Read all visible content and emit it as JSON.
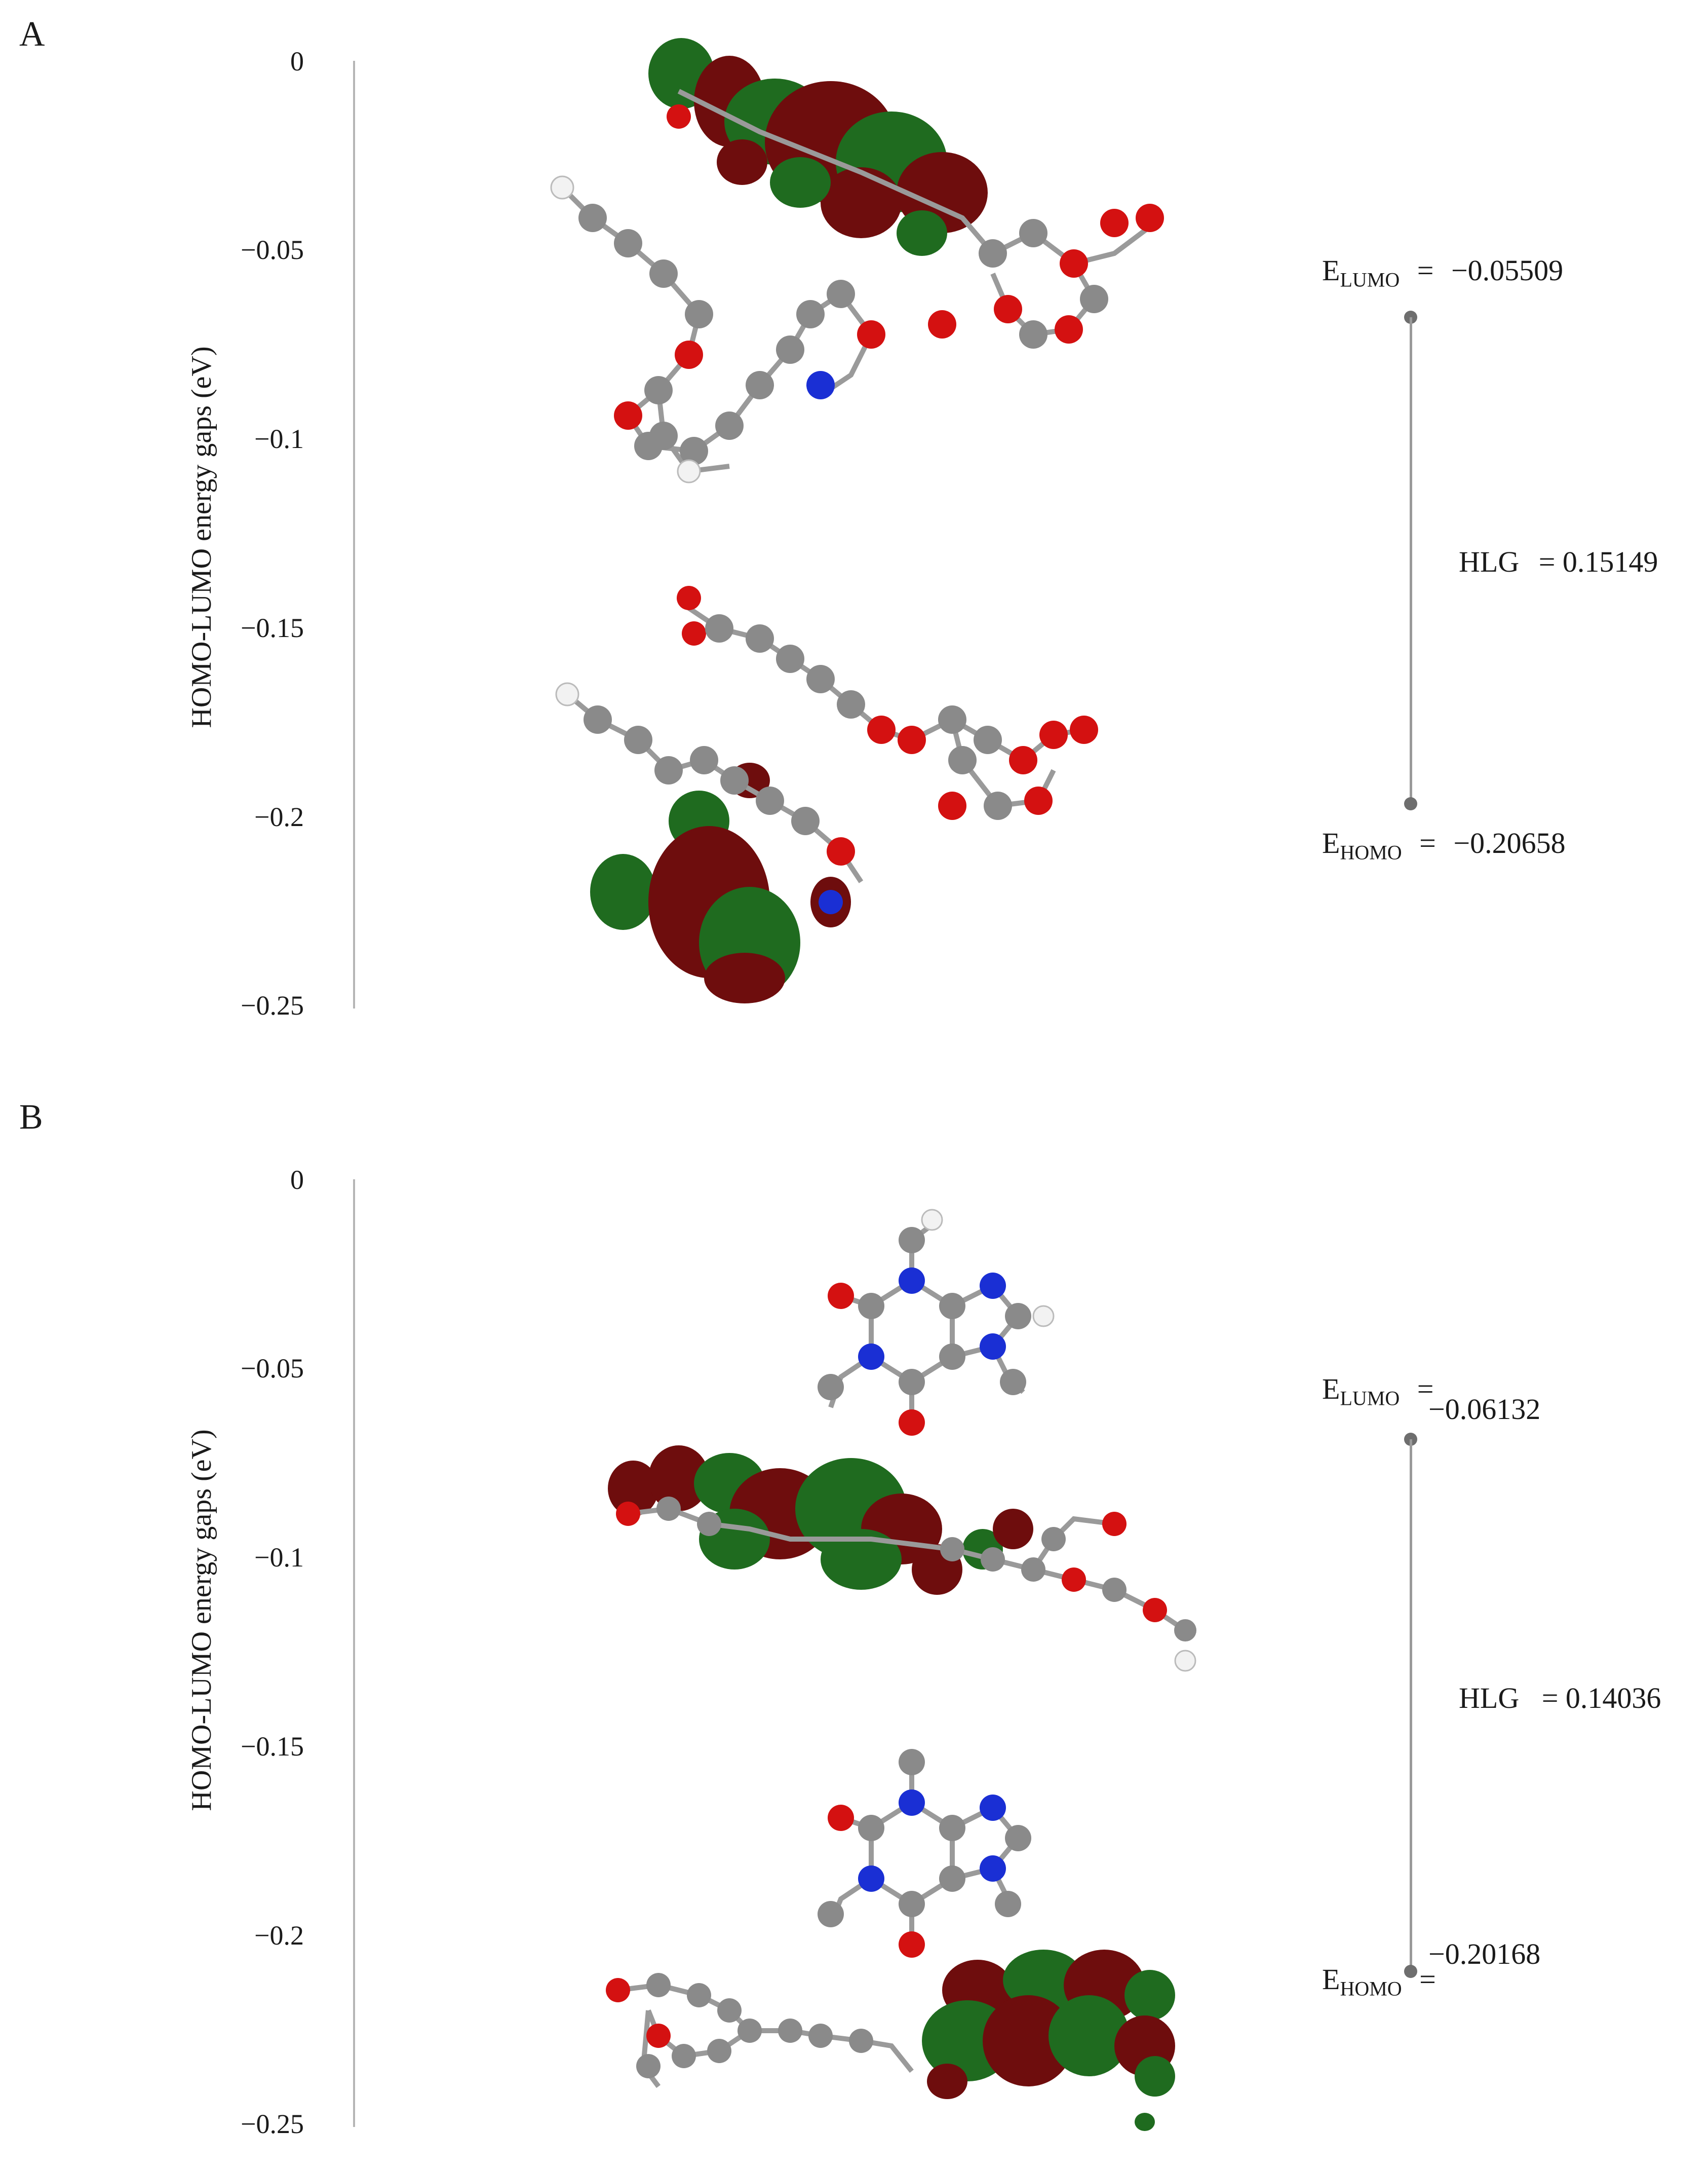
{
  "panels": [
    {
      "letter": "A",
      "y_axis_label": "HOMO-LUMO energy gaps (eV)",
      "y_ticks": [
        "0",
        "−0.05",
        "−0.1",
        "−0.15",
        "−0.2",
        "−0.25"
      ],
      "lumo": {
        "symbol": "E",
        "subscript": "LUMO",
        "eq": "=",
        "value": "−0.05509",
        "energy": -0.05509
      },
      "homo": {
        "symbol": "E",
        "subscript": "HOMO",
        "eq": "=",
        "value": "−0.20658",
        "energy": -0.20658
      },
      "gap": {
        "label": "HLG",
        "value": "= 0.15149"
      }
    },
    {
      "letter": "B",
      "y_axis_label": "HOMO-LUMO energy gaps (eV)",
      "y_ticks": [
        "0",
        "−0.05",
        "−0.1",
        "−0.15",
        "−0.2",
        "−0.25"
      ],
      "lumo": {
        "symbol": "E",
        "subscript": "LUMO",
        "eq": "=",
        "value": "−0.06132",
        "energy": -0.06132
      },
      "homo": {
        "symbol": "E",
        "subscript": "HOMO",
        "eq": "=",
        "value": "−0.20168",
        "energy": -0.20168
      },
      "gap": {
        "label": "HLG",
        "value": "= 0.14036"
      }
    }
  ],
  "colors": {
    "orbital_red": "#6e0d0d",
    "orbital_green": "#1f6b1f",
    "carbon": "#8a8a8a",
    "hydrogen": "#f2f2f2",
    "oxygen": "#d41111",
    "nitrogen": "#1a2fd4",
    "axis": "#b5b5b5"
  }
}
